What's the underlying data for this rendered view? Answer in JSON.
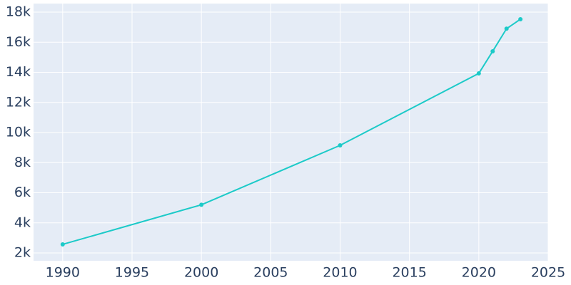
{
  "chart_data": {
    "type": "line",
    "x": [
      1990,
      2000,
      2010,
      2020,
      2021,
      2022,
      2023
    ],
    "series": [
      {
        "color": "#1ccac8",
        "values": [
          2570,
          5200,
          9150,
          13930,
          15400,
          16900,
          17530
        ]
      }
    ],
    "xlim": [
      1987.9,
      2025
    ],
    "xticks": [
      1990,
      1995,
      2000,
      2005,
      2010,
      2015,
      2020,
      2025
    ],
    "ylim": [
      1480,
      18570
    ],
    "yticks": [
      {
        "value": 2000,
        "label": "2k"
      },
      {
        "value": 4000,
        "label": "4k"
      },
      {
        "value": 6000,
        "label": "6k"
      },
      {
        "value": 8000,
        "label": "8k"
      },
      {
        "value": 10000,
        "label": "10k"
      },
      {
        "value": 12000,
        "label": "12k"
      },
      {
        "value": 14000,
        "label": "14k"
      },
      {
        "value": 16000,
        "label": "16k"
      },
      {
        "value": 18000,
        "label": "18k"
      }
    ],
    "grid": true,
    "background": "#e5ecf6"
  }
}
